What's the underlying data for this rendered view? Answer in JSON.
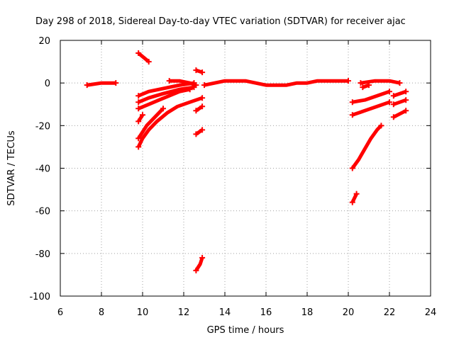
{
  "chart_data": {
    "type": "scatter",
    "title": "Day 298 of 2018, Sidereal Day-to-day VTEC variation (SDTVAR) for receiver ajac",
    "xlabel": "GPS time / hours",
    "ylabel": "SDTVAR / TECUs",
    "xlim": [
      6,
      24
    ],
    "ylim": [
      -100,
      20
    ],
    "x_ticks": [
      6,
      8,
      10,
      12,
      14,
      16,
      18,
      20,
      22,
      24
    ],
    "y_ticks": [
      -100,
      -80,
      -60,
      -40,
      -20,
      0,
      20
    ],
    "grid": true,
    "marker_color": "#ff0000",
    "tracks": [
      {
        "points": [
          [
            7.3,
            -1
          ],
          [
            8.0,
            0
          ],
          [
            8.7,
            0
          ]
        ]
      },
      {
        "points": [
          [
            9.8,
            14
          ],
          [
            10.3,
            10
          ]
        ]
      },
      {
        "points": [
          [
            9.8,
            -6
          ],
          [
            10.3,
            -4
          ],
          [
            10.8,
            -3
          ],
          [
            11.3,
            -2
          ],
          [
            11.8,
            -1
          ],
          [
            12.5,
            0
          ]
        ]
      },
      {
        "points": [
          [
            9.8,
            -9
          ],
          [
            10.3,
            -7
          ],
          [
            11.0,
            -5
          ],
          [
            11.8,
            -3
          ],
          [
            12.5,
            -2
          ]
        ]
      },
      {
        "points": [
          [
            9.8,
            -12
          ],
          [
            10.3,
            -10
          ],
          [
            10.8,
            -8
          ],
          [
            11.3,
            -6
          ],
          [
            11.8,
            -4
          ],
          [
            12.3,
            -3
          ]
        ]
      },
      {
        "points": [
          [
            9.8,
            -30
          ],
          [
            10.0,
            -26
          ],
          [
            10.3,
            -22
          ],
          [
            10.7,
            -18
          ],
          [
            11.2,
            -14
          ],
          [
            11.7,
            -11
          ],
          [
            12.3,
            -9
          ],
          [
            12.9,
            -7
          ]
        ]
      },
      {
        "points": [
          [
            9.8,
            -26
          ],
          [
            10.2,
            -20
          ],
          [
            10.6,
            -16
          ],
          [
            11.0,
            -12
          ]
        ]
      },
      {
        "points": [
          [
            9.8,
            -18
          ],
          [
            10.0,
            -15
          ]
        ]
      },
      {
        "points": [
          [
            11.3,
            1
          ],
          [
            11.8,
            1
          ],
          [
            12.3,
            0
          ],
          [
            12.6,
            -1
          ]
        ]
      },
      {
        "points": [
          [
            12.6,
            6
          ],
          [
            12.9,
            5
          ]
        ]
      },
      {
        "points": [
          [
            12.6,
            -13
          ],
          [
            12.9,
            -11
          ]
        ]
      },
      {
        "points": [
          [
            12.6,
            -24
          ],
          [
            12.9,
            -22
          ]
        ]
      },
      {
        "points": [
          [
            12.6,
            -88
          ],
          [
            12.8,
            -85
          ],
          [
            12.9,
            -82
          ]
        ]
      },
      {
        "points": [
          [
            13.0,
            -1
          ],
          [
            13.5,
            0
          ],
          [
            14.0,
            1
          ],
          [
            14.5,
            1
          ],
          [
            15.0,
            1
          ],
          [
            15.5,
            0
          ],
          [
            16.0,
            -1
          ],
          [
            16.5,
            -1
          ],
          [
            17.0,
            -1
          ],
          [
            17.5,
            0
          ],
          [
            18.0,
            0
          ],
          [
            18.5,
            1
          ],
          [
            19.0,
            1
          ],
          [
            19.5,
            1
          ],
          [
            20.0,
            1
          ]
        ]
      },
      {
        "points": [
          [
            20.2,
            -9
          ],
          [
            20.8,
            -8
          ],
          [
            21.4,
            -6
          ],
          [
            22.0,
            -4
          ]
        ]
      },
      {
        "points": [
          [
            20.2,
            -15
          ],
          [
            20.8,
            -13
          ],
          [
            21.4,
            -11
          ],
          [
            22.0,
            -9
          ]
        ]
      },
      {
        "points": [
          [
            20.2,
            -40
          ],
          [
            20.5,
            -36
          ],
          [
            20.8,
            -31
          ],
          [
            21.1,
            -26
          ],
          [
            21.4,
            -22
          ],
          [
            21.6,
            -20
          ]
        ]
      },
      {
        "points": [
          [
            20.2,
            -56
          ],
          [
            20.4,
            -52
          ]
        ]
      },
      {
        "points": [
          [
            20.6,
            0
          ],
          [
            21.3,
            1
          ],
          [
            22.0,
            1
          ],
          [
            22.5,
            0
          ]
        ]
      },
      {
        "points": [
          [
            20.7,
            -2
          ],
          [
            21.0,
            -1
          ]
        ]
      },
      {
        "points": [
          [
            22.2,
            -6
          ],
          [
            22.8,
            -4
          ]
        ]
      },
      {
        "points": [
          [
            22.2,
            -10
          ],
          [
            22.8,
            -8
          ]
        ]
      },
      {
        "points": [
          [
            22.2,
            -16
          ],
          [
            22.8,
            -13
          ]
        ]
      }
    ]
  }
}
